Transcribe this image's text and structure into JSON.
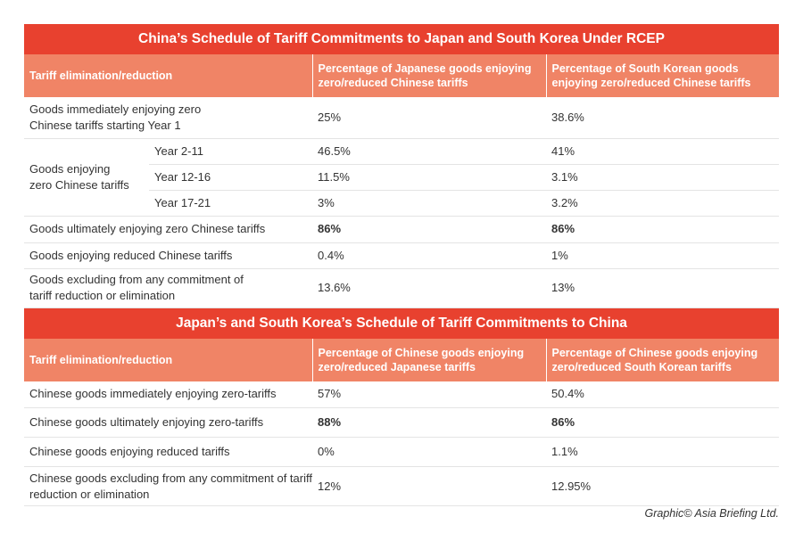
{
  "table1": {
    "title": "China’s Schedule of Tariff Commitments to Japan and South Korea Under RCEP",
    "headers": [
      "Tariff elimination/reduction",
      "Percentage of Japanese goods enjoying zero/reduced Chinese tariffs",
      "Percentage of South Korean goods enjoying zero/reduced Chinese tariffs"
    ],
    "rows": {
      "immediate": {
        "label": "Goods immediately enjoying zero Chinese tariffs starting Year 1",
        "japan": "25%",
        "korea": "38.6%"
      },
      "enjoying_group_label": "Goods enjoying zero Chinese tariffs",
      "years": [
        {
          "label": "Year 2-11",
          "japan": "46.5%",
          "korea": "41%"
        },
        {
          "label": "Year 12-16",
          "japan": "11.5%",
          "korea": "3.1%"
        },
        {
          "label": "Year 17-21",
          "japan": "3%",
          "korea": "3.2%"
        }
      ],
      "ultimate": {
        "label": "Goods ultimately enjoying zero Chinese tariffs",
        "japan": "86%",
        "korea": "86%"
      },
      "reduced": {
        "label": "Goods enjoying reduced Chinese tariffs",
        "japan": "0.4%",
        "korea": "1%"
      },
      "excluded": {
        "label": "Goods excluding from any commitment of tariff reduction or elimination",
        "japan": "13.6%",
        "korea": "13%"
      }
    }
  },
  "table2": {
    "title": "Japan’s and South Korea’s Schedule of Tariff Commitments to China",
    "headers": [
      "Tariff elimination/reduction",
      "Percentage of Chinese goods enjoying zero/reduced Japanese tariffs",
      "Percentage of Chinese goods enjoying zero/reduced South Korean tariffs"
    ],
    "rows": [
      {
        "label": "Chinese goods immediately enjoying zero-tariffs",
        "japan": "57%",
        "korea": "50.4%"
      },
      {
        "label": "Chinese goods ultimately enjoying zero-tariffs",
        "japan": "88%",
        "korea": "86%"
      },
      {
        "label": "Chinese goods enjoying reduced tariffs",
        "japan": "0%",
        "korea": "1.1%"
      },
      {
        "label": "Chinese goods excluding from any commitment of tariff reduction or elimination",
        "japan": "12%",
        "korea": "12.95%"
      }
    ]
  },
  "credit": "Graphic© Asia Briefing Ltd.",
  "colors": {
    "title_bg": "#e8412f",
    "header_bg": "#f08466"
  }
}
